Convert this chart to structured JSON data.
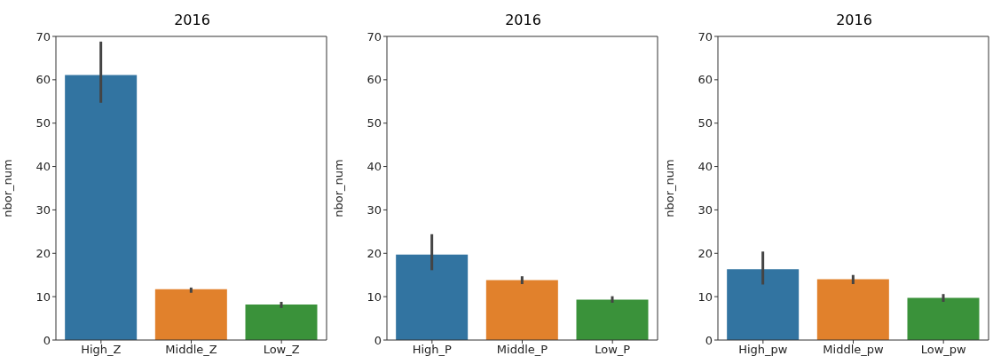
{
  "chart_data": [
    {
      "type": "bar",
      "title": "2016",
      "ylabel": "nbor_num",
      "categories": [
        "High_Z",
        "Middle_Z",
        "Low_Z"
      ],
      "values": [
        61.1,
        11.7,
        8.2
      ],
      "colors": [
        "#3274a1",
        "#e1812c",
        "#3a923a"
      ],
      "errors": [
        [
          54.7,
          68.8
        ],
        [
          10.9,
          12.1
        ],
        [
          7.4,
          8.8
        ]
      ],
      "ylim": [
        0,
        70
      ],
      "yticks": [
        0,
        10,
        20,
        30,
        40,
        50,
        60,
        70
      ],
      "grid": false
    },
    {
      "type": "bar",
      "title": "2016",
      "ylabel": "nbor_num",
      "categories": [
        "High_P",
        "Middle_P",
        "Low_P"
      ],
      "values": [
        19.7,
        13.8,
        9.3
      ],
      "colors": [
        "#3274a1",
        "#e1812c",
        "#3a923a"
      ],
      "errors": [
        [
          16.1,
          24.4
        ],
        [
          12.9,
          14.7
        ],
        [
          8.6,
          10.1
        ]
      ],
      "ylim": [
        0,
        70
      ],
      "yticks": [
        0,
        10,
        20,
        30,
        40,
        50,
        60,
        70
      ],
      "grid": false
    },
    {
      "type": "bar",
      "title": "2016",
      "ylabel": "nbor_num",
      "categories": [
        "High_pw",
        "Middle_pw",
        "Low_pw"
      ],
      "values": [
        16.3,
        14.0,
        9.7
      ],
      "colors": [
        "#3274a1",
        "#e1812c",
        "#3a923a"
      ],
      "errors": [
        [
          12.8,
          20.4
        ],
        [
          12.9,
          15.0
        ],
        [
          8.8,
          10.6
        ]
      ],
      "ylim": [
        0,
        70
      ],
      "yticks": [
        0,
        10,
        20,
        30,
        40,
        50,
        60,
        70
      ],
      "grid": false
    }
  ]
}
